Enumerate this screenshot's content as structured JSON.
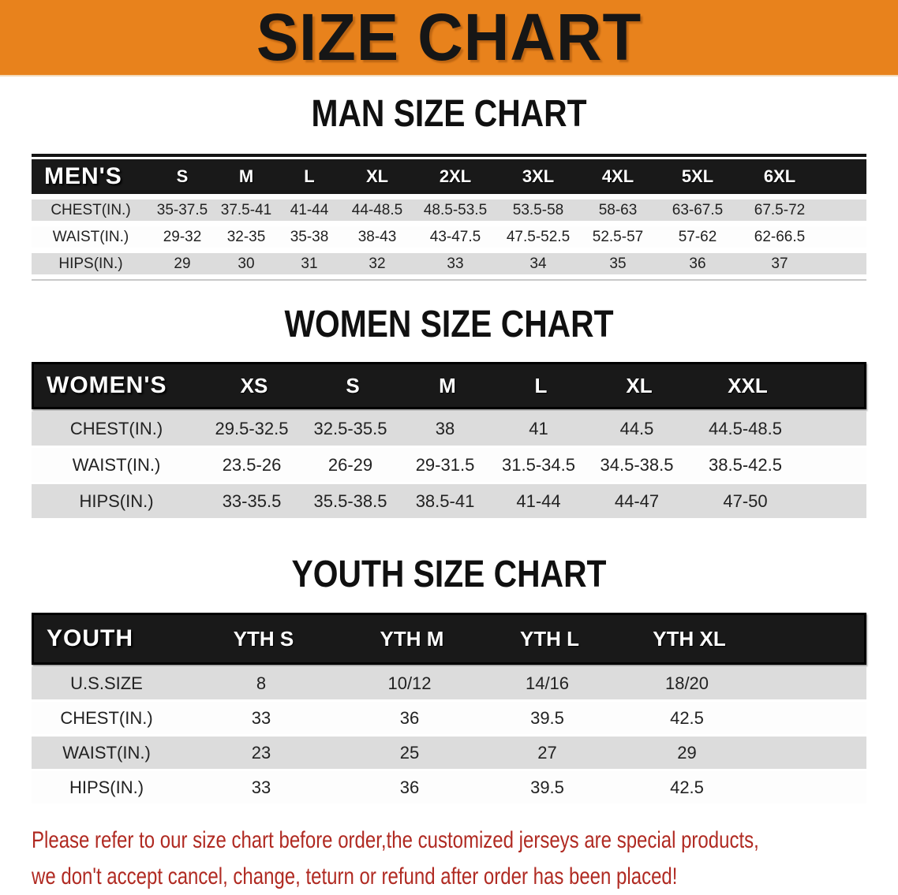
{
  "colors": {
    "banner_bg": "#E8821C",
    "bar_bg": "#191919",
    "row_alt": "#DCDCDC",
    "row_white": "#FDFDFD",
    "disclaimer_color": "#B02A22",
    "text_color": "#222222"
  },
  "banner": {
    "title": "SIZE CHART"
  },
  "sections": {
    "men": {
      "heading": "MAN SIZE CHART",
      "corner": "MEN'S",
      "sizes": [
        "S",
        "M",
        "L",
        "XL",
        "2XL",
        "3XL",
        "4XL",
        "5XL",
        "6XL"
      ],
      "rows": [
        {
          "label": "CHEST(IN.)",
          "values": [
            "35-37.5",
            "37.5-41",
            "41-44",
            "44-48.5",
            "48.5-53.5",
            "53.5-58",
            "58-63",
            "63-67.5",
            "67.5-72"
          ]
        },
        {
          "label": "WAIST(IN.)",
          "values": [
            "29-32",
            "32-35",
            "35-38",
            "38-43",
            "43-47.5",
            "47.5-52.5",
            "52.5-57",
            "57-62",
            "62-66.5"
          ]
        },
        {
          "label": "HIPS(IN.)",
          "values": [
            "29",
            "30",
            "31",
            "32",
            "33",
            "34",
            "35",
            "36",
            "37"
          ]
        }
      ]
    },
    "women": {
      "heading": "WOMEN SIZE CHART",
      "corner": "WOMEN'S",
      "sizes": [
        "XS",
        "S",
        "M",
        "L",
        "XL",
        "XXL"
      ],
      "rows": [
        {
          "label": "CHEST(IN.)",
          "values": [
            "29.5-32.5",
            "32.5-35.5",
            "38",
            "41",
            "44.5",
            "44.5-48.5"
          ]
        },
        {
          "label": "WAIST(IN.)",
          "values": [
            "23.5-26",
            "26-29",
            "29-31.5",
            "31.5-34.5",
            "34.5-38.5",
            "38.5-42.5"
          ]
        },
        {
          "label": "HIPS(IN.)",
          "values": [
            "33-35.5",
            "35.5-38.5",
            "38.5-41",
            "41-44",
            "44-47",
            "47-50"
          ]
        }
      ]
    },
    "youth": {
      "heading": "YOUTH SIZE CHART",
      "corner": "YOUTH",
      "sizes": [
        "YTH S",
        "YTH M",
        "YTH L",
        "YTH XL"
      ],
      "rows": [
        {
          "label": "U.S.SIZE",
          "values": [
            "8",
            "10/12",
            "14/16",
            "18/20"
          ]
        },
        {
          "label": "CHEST(IN.)",
          "values": [
            "33",
            "36",
            "39.5",
            "42.5"
          ]
        },
        {
          "label": "WAIST(IN.)",
          "values": [
            "23",
            "25",
            "27",
            "29"
          ]
        },
        {
          "label": "HIPS(IN.)",
          "values": [
            "33",
            "36",
            "39.5",
            "42.5"
          ]
        }
      ]
    }
  },
  "disclaimer": {
    "line1": "Please refer to our size chart before order,the customized jerseys are special products,",
    "line2": "we don't accept cancel, change, teturn or refund after order has been placed!"
  }
}
